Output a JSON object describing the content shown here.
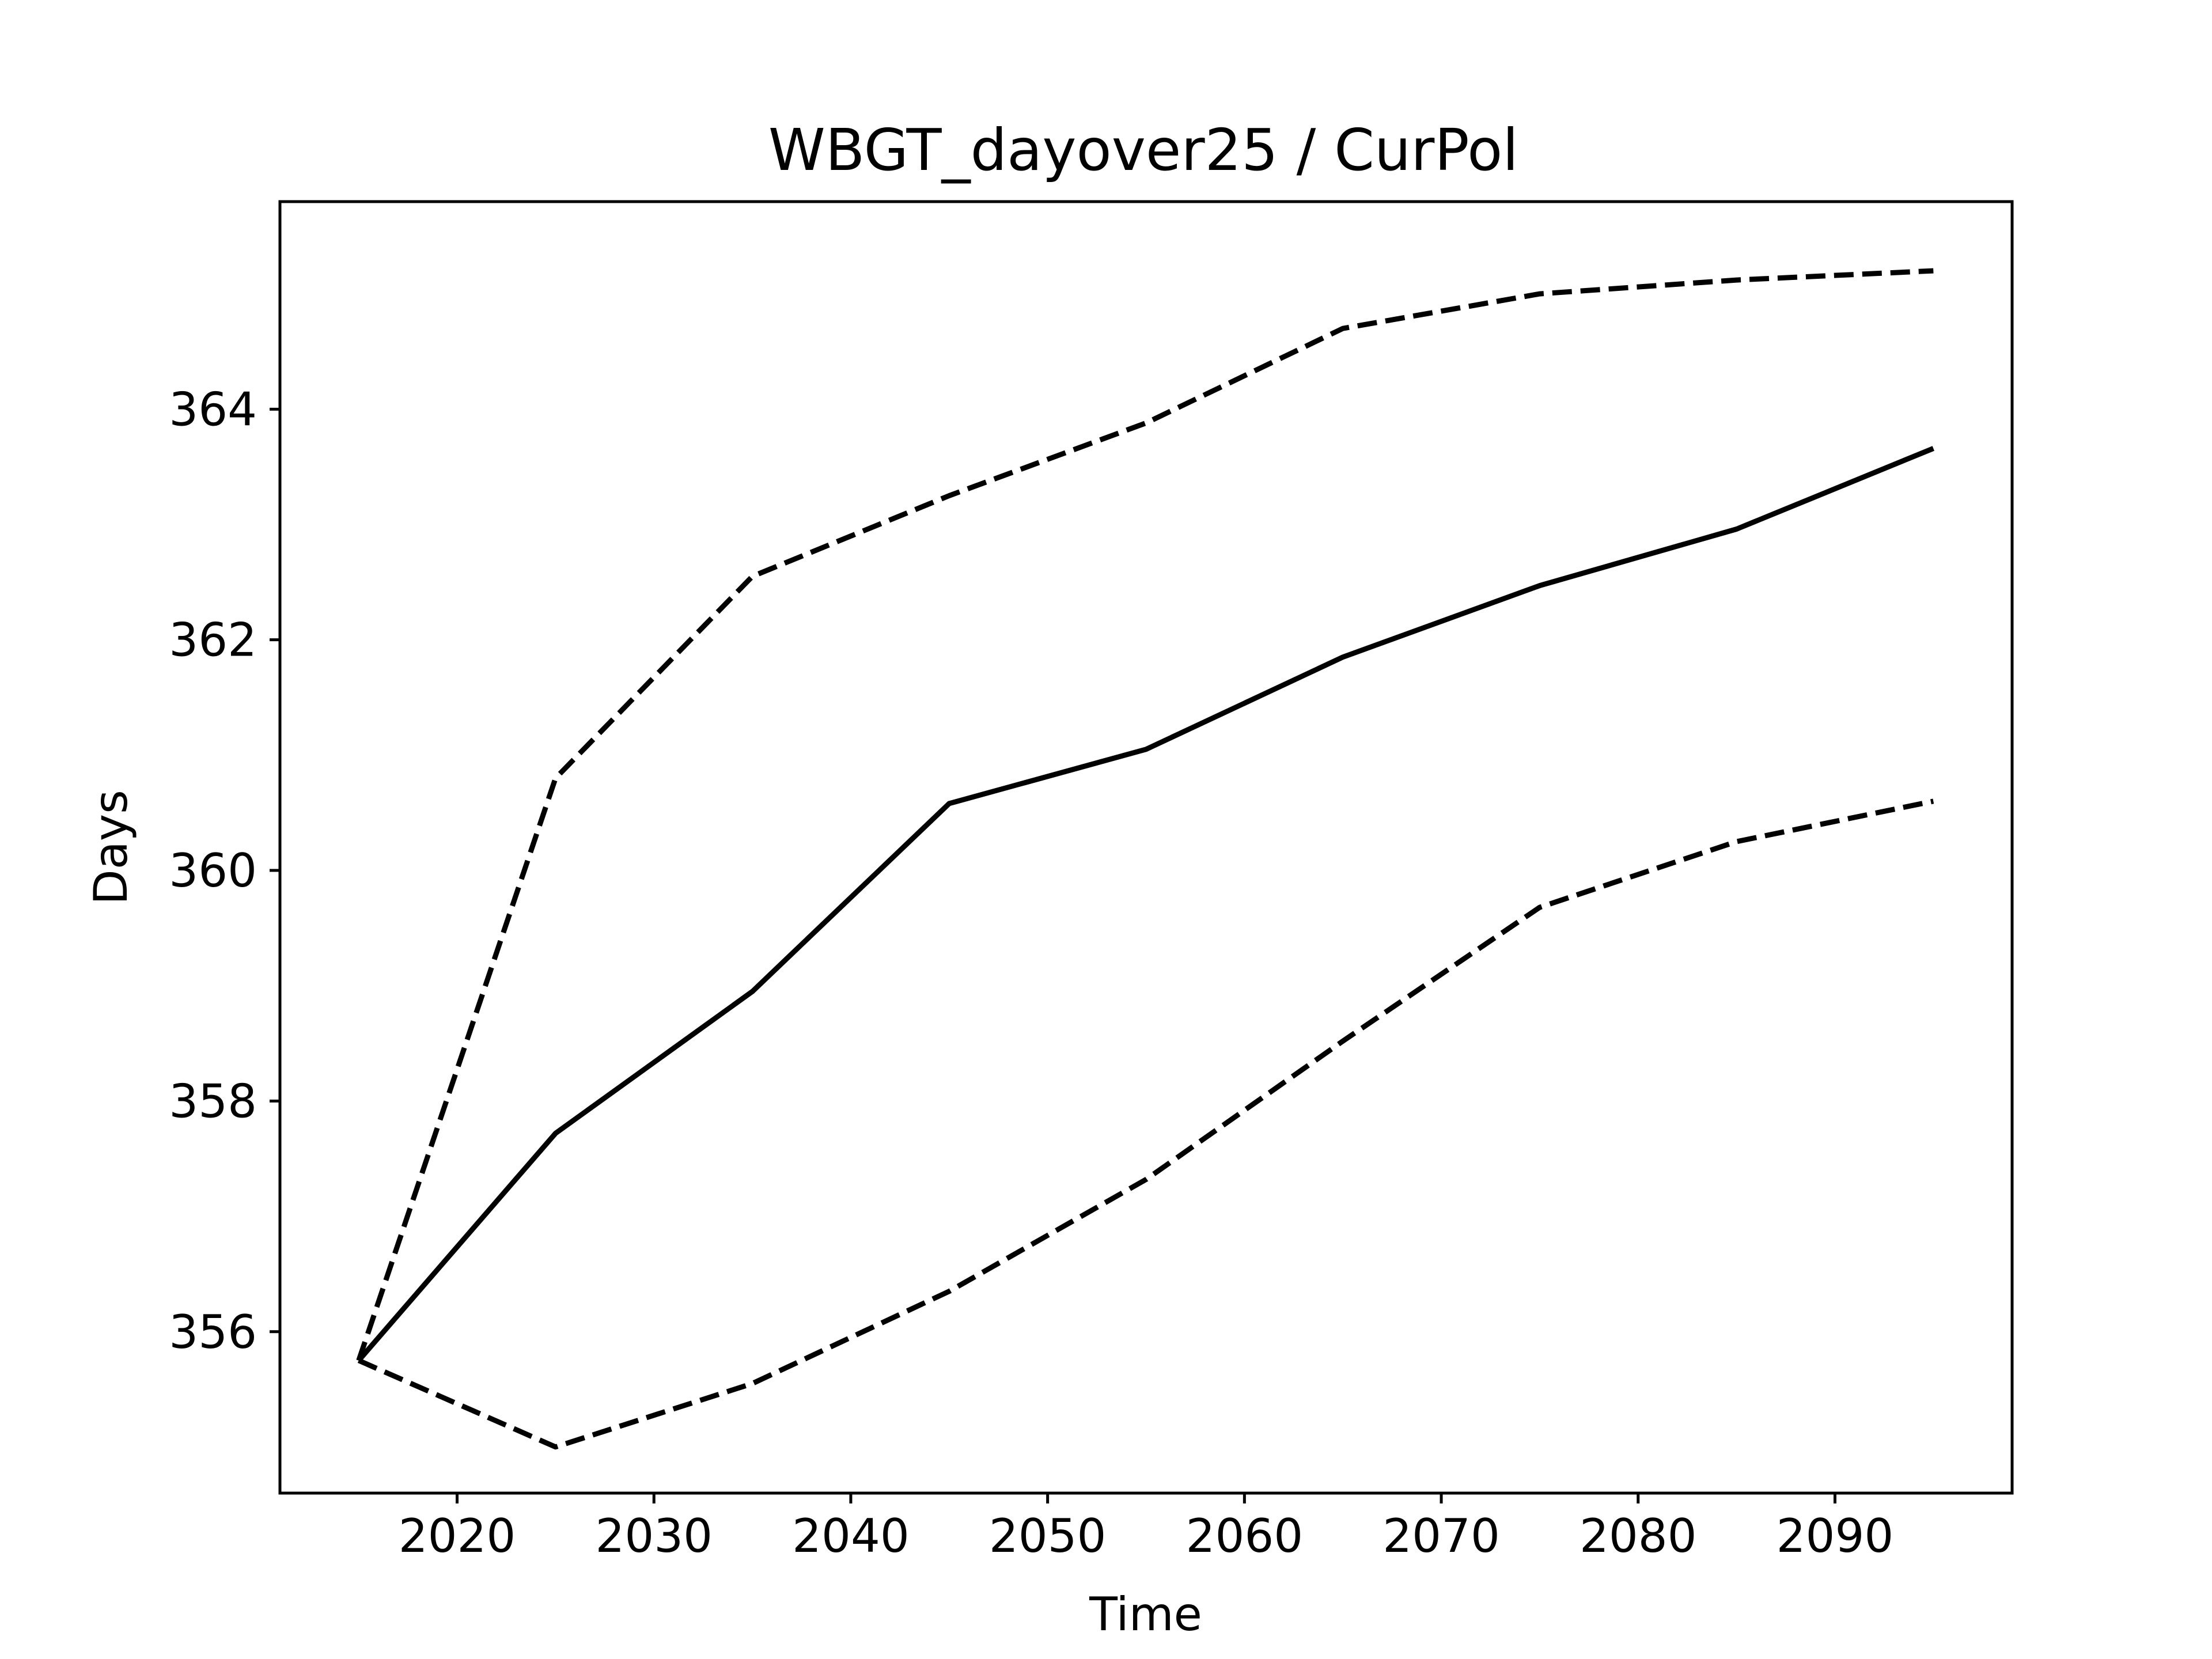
{
  "chart_data": {
    "type": "line",
    "title": "WBGT_dayover25 / CurPol",
    "xlabel": "Time",
    "ylabel": "Days",
    "xlim": [
      2011,
      2099
    ],
    "ylim": [
      354.6,
      365.8
    ],
    "x": [
      2015,
      2025,
      2035,
      2045,
      2055,
      2065,
      2075,
      2085,
      2095
    ],
    "xticks": [
      2020,
      2030,
      2040,
      2050,
      2060,
      2070,
      2080,
      2090
    ],
    "yticks": [
      356,
      358,
      360,
      362,
      364
    ],
    "grid": false,
    "legend": "none",
    "series": [
      {
        "style": "solid",
        "color": "#000000",
        "values": [
          355.75,
          357.72,
          358.95,
          360.58,
          361.05,
          361.85,
          362.47,
          362.96,
          363.66
        ]
      },
      {
        "style": "dashed",
        "color": "#000000",
        "values": [
          355.75,
          360.8,
          362.55,
          363.25,
          363.88,
          364.7,
          365.0,
          365.12,
          365.2
        ]
      },
      {
        "style": "dashed",
        "color": "#000000",
        "values": [
          355.75,
          355.0,
          355.55,
          356.35,
          357.32,
          358.52,
          359.68,
          360.25,
          360.6
        ]
      }
    ]
  }
}
